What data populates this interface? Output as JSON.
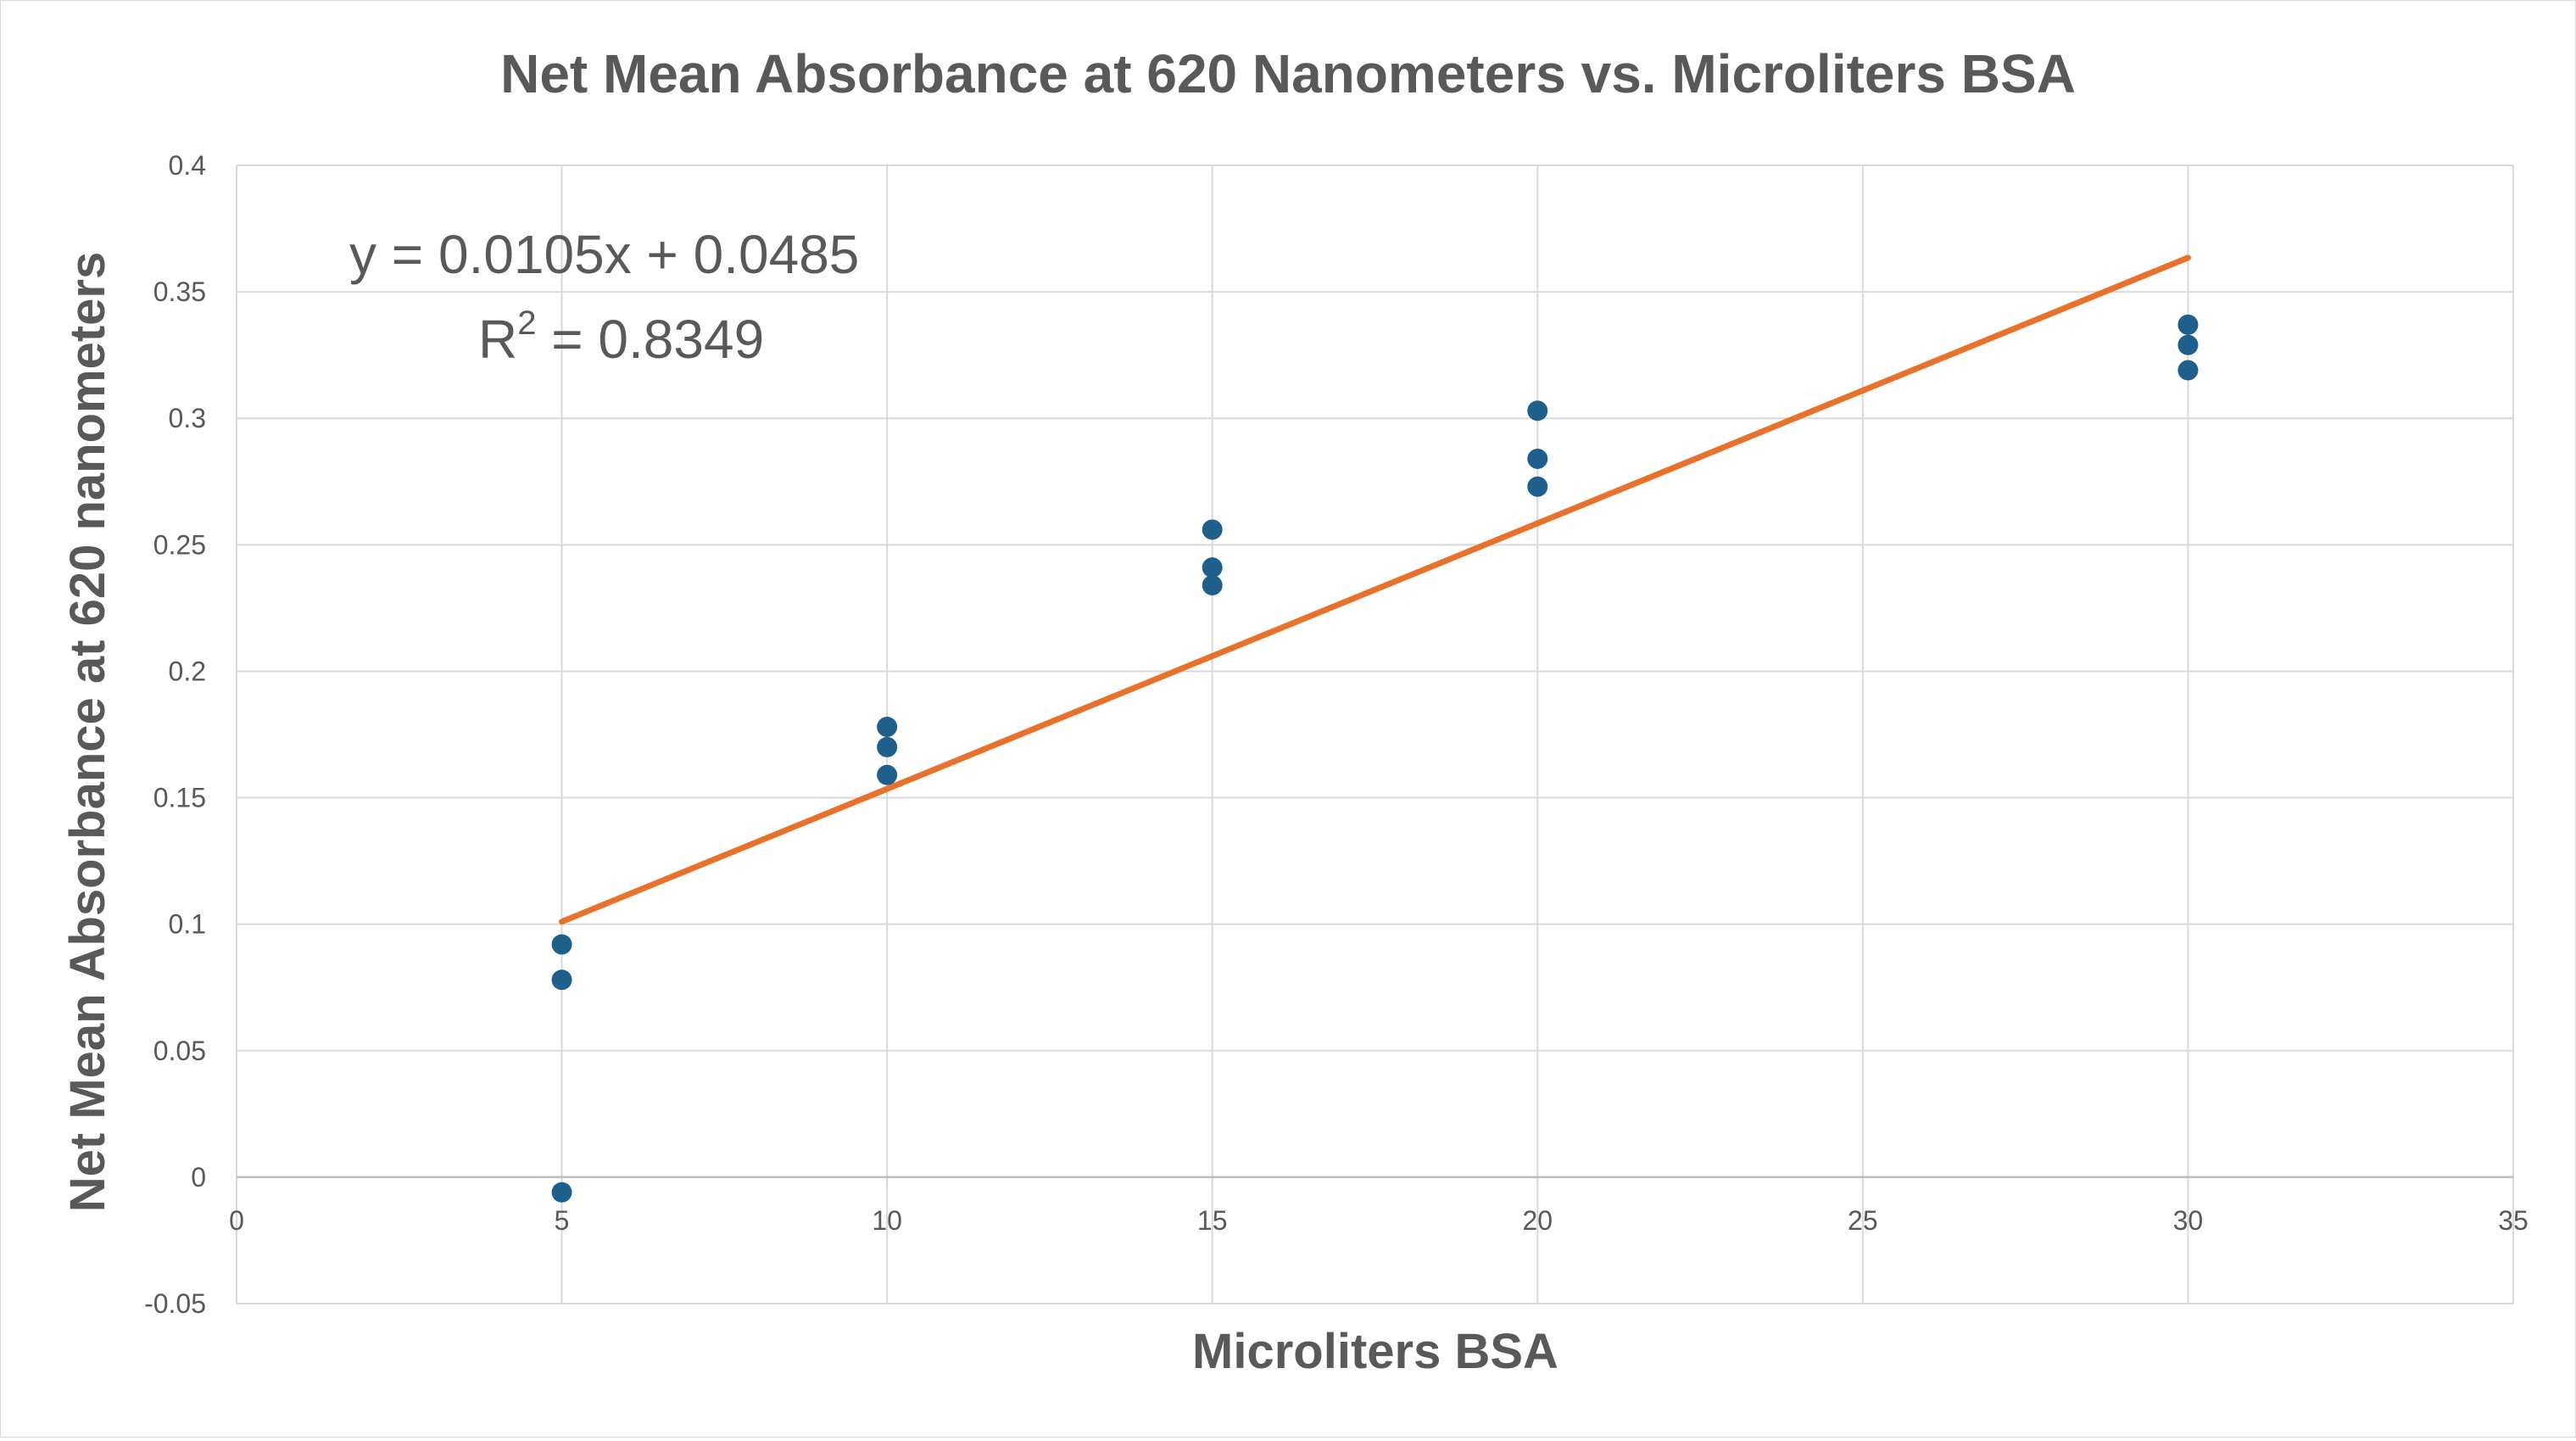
{
  "chart_data": {
    "type": "scatter",
    "title": "Net Mean Absorbance at 620 Nanometers vs. Microliters BSA",
    "xlabel": "Microliters BSA",
    "ylabel": "Net Mean Absorbance at 620 nanometers",
    "xlim": [
      0,
      35
    ],
    "ylim": [
      -0.05,
      0.4
    ],
    "x_ticks": [
      0,
      5,
      10,
      15,
      20,
      25,
      30,
      35
    ],
    "y_ticks": [
      -0.05,
      0,
      0.05,
      0.1,
      0.15,
      0.2,
      0.25,
      0.3,
      0.35,
      0.4
    ],
    "x_tick_labels": [
      "0",
      "5",
      "10",
      "15",
      "20",
      "25",
      "30",
      "35"
    ],
    "y_tick_labels": [
      "-0.05",
      "0",
      "0.05",
      "0.1",
      "0.15",
      "0.2",
      "0.25",
      "0.3",
      "0.35",
      "0.4"
    ],
    "grid": true,
    "legend": "none",
    "series": [
      {
        "color": "#1f5f8b",
        "points": [
          {
            "x": 5,
            "y": 0.092
          },
          {
            "x": 5,
            "y": 0.078
          },
          {
            "x": 5,
            "y": -0.006
          },
          {
            "x": 10,
            "y": 0.178
          },
          {
            "x": 10,
            "y": 0.17
          },
          {
            "x": 10,
            "y": 0.159
          },
          {
            "x": 15,
            "y": 0.256
          },
          {
            "x": 15,
            "y": 0.241
          },
          {
            "x": 15,
            "y": 0.234
          },
          {
            "x": 20,
            "y": 0.303
          },
          {
            "x": 20,
            "y": 0.284
          },
          {
            "x": 20,
            "y": 0.273
          },
          {
            "x": 30,
            "y": 0.337
          },
          {
            "x": 30,
            "y": 0.329
          },
          {
            "x": 30,
            "y": 0.319
          }
        ]
      }
    ],
    "trendline": {
      "type": "linear",
      "color": "#e8712c",
      "slope": 0.0105,
      "intercept": 0.0485,
      "x_range": [
        5,
        30
      ],
      "equation_label": "y = 0.0105x + 0.0485",
      "r2_base": "R",
      "r2_exponent": "2",
      "r2_rest": " = 0.8349"
    },
    "colors": {
      "gridline": "#d9d9d9",
      "text": "#595959",
      "frame": "#d9d9d9"
    }
  }
}
